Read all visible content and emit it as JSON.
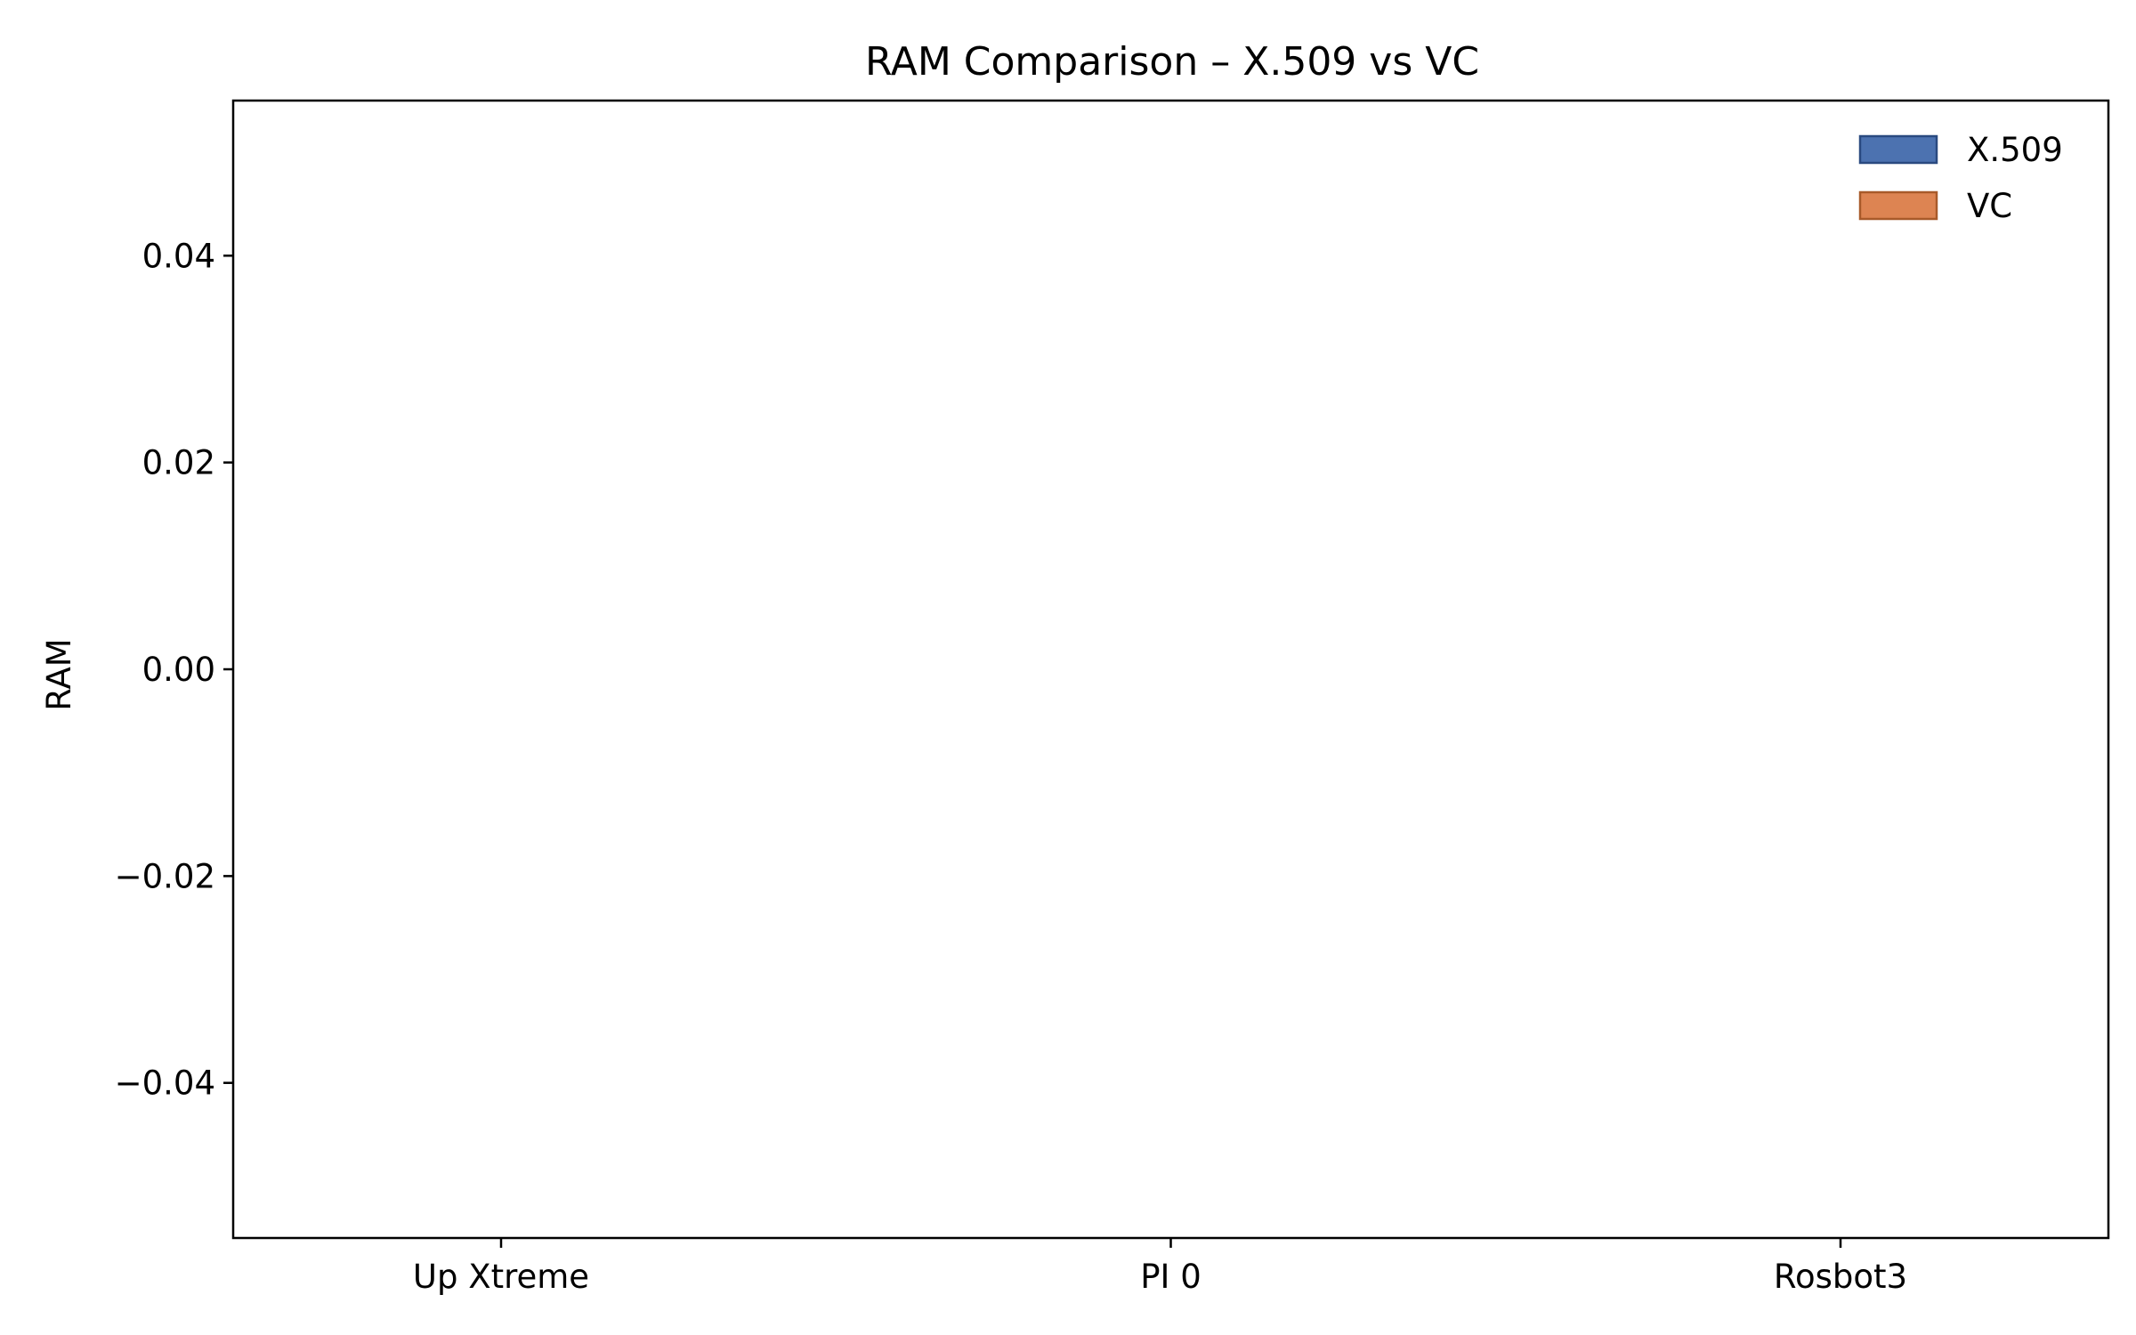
{
  "chart_data": {
    "type": "bar",
    "title": "RAM Comparison – X.509 vs VC",
    "xlabel": "",
    "ylabel": "RAM",
    "categories": [
      "Up Xtreme",
      "PI 0",
      "Rosbot3"
    ],
    "series": [
      {
        "name": "X.509",
        "values": [
          0,
          0,
          0
        ],
        "color": "#4c72b0",
        "edge_color": "#2a4a80"
      },
      {
        "name": "VC",
        "values": [
          0,
          0,
          0
        ],
        "color": "#dd8452",
        "edge_color": "#a85a2a"
      }
    ],
    "ylim": [
      -0.055,
      0.055
    ],
    "yticks": [
      -0.04,
      -0.02,
      0.0,
      0.02,
      0.04
    ],
    "ytick_labels": [
      "−0.04",
      "−0.02",
      "0.00",
      "0.02",
      "0.04"
    ],
    "grid": false,
    "legend_position": "top-right"
  }
}
